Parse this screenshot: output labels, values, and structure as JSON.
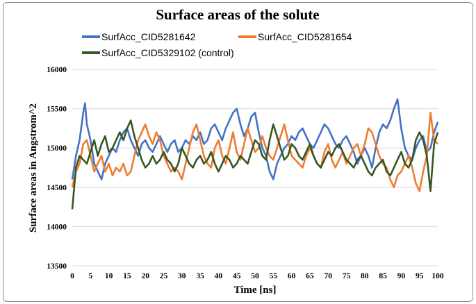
{
  "chart_data": {
    "type": "line",
    "title": "Surface areas of the solute",
    "xlabel": "Time [ns]",
    "ylabel": "Surface areas in Angstrom^2",
    "xlim": [
      0,
      100
    ],
    "ylim": [
      13500,
      16000
    ],
    "xticks": [
      0,
      5,
      10,
      15,
      20,
      25,
      30,
      35,
      40,
      45,
      50,
      55,
      60,
      65,
      70,
      75,
      80,
      85,
      90,
      95,
      100
    ],
    "yticks": [
      13500,
      14000,
      14500,
      15000,
      15500,
      16000
    ],
    "grid": "horizontal",
    "legend_position": "top",
    "series": [
      {
        "name": "SurfAcc_CID5281642",
        "color": "#4472c4",
        "x": [
          0,
          1,
          2,
          3,
          3.5,
          4,
          5,
          6,
          7,
          8,
          9,
          10,
          11,
          12,
          13,
          14,
          15,
          16,
          17,
          18,
          19,
          20,
          21,
          22,
          23,
          24,
          25,
          26,
          27,
          28,
          29,
          30,
          31,
          32,
          33,
          34,
          35,
          36,
          37,
          38,
          39,
          40,
          41,
          42,
          43,
          44,
          45,
          46,
          47,
          48,
          49,
          50,
          51,
          52,
          53,
          54,
          55,
          56,
          57,
          58,
          59,
          60,
          61,
          62,
          63,
          64,
          65,
          66,
          67,
          68,
          69,
          70,
          71,
          72,
          73,
          74,
          75,
          76,
          77,
          78,
          79,
          80,
          81,
          82,
          83,
          84,
          85,
          86,
          87,
          88,
          89,
          90,
          91,
          92,
          93,
          94,
          95,
          96,
          97,
          98,
          99,
          100
        ],
        "values": [
          14600,
          14900,
          15100,
          15450,
          15570,
          15300,
          15100,
          14800,
          14700,
          14600,
          14800,
          14900,
          15000,
          14950,
          15100,
          15200,
          15250,
          15100,
          15000,
          14900,
          15050,
          15100,
          15000,
          14950,
          15050,
          15150,
          15050,
          14950,
          15050,
          15100,
          14950,
          15000,
          15100,
          15050,
          15150,
          15100,
          15200,
          15050,
          15100,
          15250,
          15300,
          15200,
          15100,
          15250,
          15350,
          15450,
          15500,
          15300,
          15150,
          15250,
          15400,
          15450,
          15200,
          15000,
          14900,
          14700,
          14600,
          14800,
          14900,
          15000,
          15050,
          15150,
          15100,
          15200,
          15250,
          15150,
          15050,
          15000,
          15100,
          15200,
          15300,
          15250,
          15150,
          15050,
          15000,
          15100,
          15150,
          15050,
          14950,
          14800,
          14900,
          15000,
          14900,
          14750,
          15000,
          15200,
          15300,
          15250,
          15350,
          15500,
          15620,
          15250,
          15000,
          14900,
          14850,
          15000,
          15100,
          15150,
          14950,
          15000,
          15200,
          15330
        ]
      },
      {
        "name": "SurfAcc_CID5281654",
        "color": "#ed7d31",
        "x": [
          0,
          1,
          2,
          3,
          4,
          5,
          6,
          7,
          8,
          9,
          10,
          11,
          12,
          13,
          14,
          15,
          16,
          17,
          18,
          19,
          20,
          21,
          22,
          23,
          24,
          25,
          26,
          27,
          28,
          29,
          30,
          31,
          32,
          33,
          34,
          35,
          36,
          37,
          38,
          39,
          40,
          41,
          42,
          43,
          44,
          45,
          46,
          47,
          48,
          49,
          50,
          51,
          52,
          53,
          54,
          55,
          56,
          57,
          58,
          59,
          60,
          61,
          62,
          63,
          64,
          65,
          66,
          67,
          68,
          69,
          70,
          71,
          72,
          73,
          74,
          75,
          76,
          77,
          78,
          79,
          80,
          81,
          82,
          83,
          84,
          85,
          86,
          87,
          88,
          89,
          90,
          91,
          92,
          93,
          94,
          95,
          96,
          97,
          98,
          99,
          100
        ],
        "values": [
          14500,
          14700,
          14800,
          15050,
          15100,
          14900,
          14700,
          14800,
          14900,
          14700,
          14800,
          14650,
          14750,
          14700,
          14800,
          14650,
          14700,
          14900,
          15100,
          15200,
          15300,
          15150,
          15050,
          15200,
          15100,
          14900,
          14800,
          14700,
          14750,
          14700,
          14600,
          14800,
          15000,
          15200,
          15300,
          15100,
          14900,
          14800,
          14750,
          15000,
          15100,
          14900,
          14800,
          15000,
          15200,
          14950,
          14850,
          15050,
          15250,
          15100,
          14950,
          15000,
          15150,
          15000,
          14900,
          14850,
          15000,
          15150,
          15300,
          15100,
          14900,
          14850,
          14800,
          14750,
          14900,
          15000,
          14900,
          14800,
          14750,
          14950,
          15050,
          14850,
          14750,
          14850,
          14950,
          14800,
          14900,
          15000,
          15050,
          14900,
          15050,
          15250,
          15200,
          15050,
          14900,
          14800,
          14750,
          14600,
          14500,
          14650,
          14700,
          14800,
          14900,
          14750,
          14550,
          14450,
          14700,
          14900,
          15450,
          15100,
          15050
        ]
      },
      {
        "name": "SurfAcc_CID5329102 (control)",
        "color": "#375623",
        "x": [
          0,
          1,
          2,
          3,
          4,
          5,
          6,
          7,
          8,
          9,
          10,
          11,
          12,
          13,
          14,
          15,
          16,
          17,
          18,
          19,
          20,
          21,
          22,
          23,
          24,
          25,
          26,
          27,
          28,
          29,
          30,
          31,
          32,
          33,
          34,
          35,
          36,
          37,
          38,
          39,
          40,
          41,
          42,
          43,
          44,
          45,
          46,
          47,
          48,
          49,
          50,
          51,
          52,
          53,
          54,
          55,
          56,
          57,
          58,
          59,
          60,
          61,
          62,
          63,
          64,
          65,
          66,
          67,
          68,
          69,
          70,
          71,
          72,
          73,
          74,
          75,
          76,
          77,
          78,
          79,
          80,
          81,
          82,
          83,
          84,
          85,
          86,
          87,
          88,
          89,
          90,
          91,
          92,
          93,
          94,
          95,
          96,
          97,
          98,
          99,
          100
        ],
        "values": [
          14220,
          14750,
          14900,
          14850,
          14800,
          14950,
          15100,
          14900,
          15050,
          15150,
          14950,
          15000,
          15100,
          15200,
          15100,
          15250,
          15350,
          15150,
          15000,
          14850,
          14750,
          14800,
          14900,
          14800,
          14850,
          14950,
          14850,
          14800,
          14700,
          14800,
          15000,
          14900,
          14800,
          14750,
          14850,
          14900,
          14800,
          14850,
          14950,
          14800,
          14700,
          14800,
          14900,
          14850,
          14750,
          14800,
          14900,
          14850,
          14800,
          14950,
          15100,
          15050,
          14900,
          14850,
          15100,
          15300,
          15150,
          15000,
          14850,
          14900,
          15050,
          15000,
          14900,
          14850,
          14950,
          15050,
          14900,
          14800,
          14750,
          14850,
          14950,
          14900,
          15000,
          15050,
          14950,
          14850,
          14800,
          14750,
          14850,
          14900,
          14800,
          14700,
          14650,
          14750,
          14800,
          14850,
          14700,
          14650,
          14750,
          14850,
          14950,
          14800,
          14750,
          14850,
          15100,
          15200,
          15100,
          14900,
          14450,
          15050,
          15200
        ]
      }
    ]
  }
}
